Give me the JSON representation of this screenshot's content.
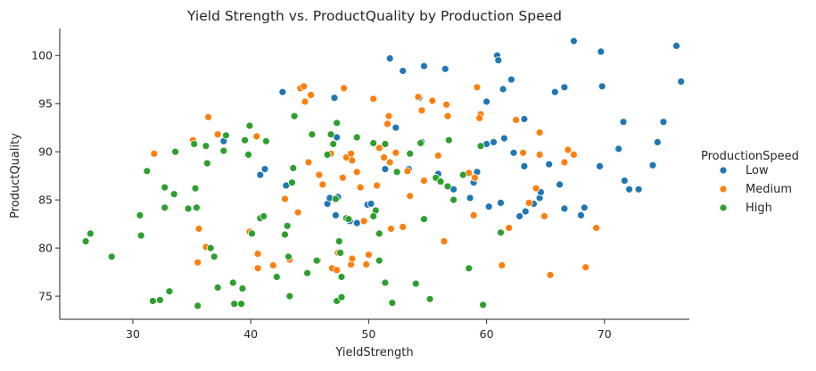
{
  "chart_data": {
    "type": "scatter",
    "title": "Yield Strength vs. ProductQuality by Production Speed",
    "xlabel": "YieldStrength",
    "ylabel": "ProductQuality",
    "xlim": [
      23.8,
      77.2
    ],
    "ylim": [
      72.6,
      102.8
    ],
    "xticks": [
      30,
      40,
      50,
      60,
      70
    ],
    "yticks": [
      75,
      80,
      85,
      90,
      95,
      100
    ],
    "grid": false,
    "legend": {
      "title": "ProductionSpeed",
      "position": "right"
    },
    "series": [
      {
        "name": "Low",
        "color": "#1f77b4",
        "points": [
          [
            37.7,
            91.1
          ],
          [
            40.8,
            87.6
          ],
          [
            41.2,
            88.2
          ],
          [
            42.7,
            96.2
          ],
          [
            43.0,
            86.5
          ],
          [
            44.3,
            96.6
          ],
          [
            46.5,
            84.6
          ],
          [
            46.7,
            85.2
          ],
          [
            47.1,
            95.6
          ],
          [
            47.3,
            91.5
          ],
          [
            47.2,
            83.4
          ],
          [
            47.4,
            85.3
          ],
          [
            48.4,
            82.8
          ],
          [
            49.0,
            82.6
          ],
          [
            49.9,
            84.5
          ],
          [
            50.2,
            84.6
          ],
          [
            51.4,
            88.2
          ],
          [
            51.8,
            99.7
          ],
          [
            52.3,
            92.5
          ],
          [
            52.9,
            98.4
          ],
          [
            53.4,
            88.2
          ],
          [
            54.3,
            95.6
          ],
          [
            54.5,
            91.0
          ],
          [
            54.7,
            98.9
          ],
          [
            55.9,
            87.7
          ],
          [
            56.5,
            98.6
          ],
          [
            57.2,
            86.1
          ],
          [
            58.6,
            85.2
          ],
          [
            58.9,
            86.8
          ],
          [
            59.2,
            87.9
          ],
          [
            60.0,
            90.8
          ],
          [
            60.0,
            95.2
          ],
          [
            60.2,
            84.3
          ],
          [
            60.6,
            91.0
          ],
          [
            60.9,
            100.0
          ],
          [
            61.0,
            99.5
          ],
          [
            61.2,
            84.7
          ],
          [
            61.4,
            96.5
          ],
          [
            61.5,
            91.4
          ],
          [
            62.1,
            97.5
          ],
          [
            62.3,
            89.9
          ],
          [
            62.8,
            83.3
          ],
          [
            63.2,
            93.4
          ],
          [
            63.2,
            88.5
          ],
          [
            63.3,
            83.8
          ],
          [
            64.0,
            84.6
          ],
          [
            64.5,
            85.2
          ],
          [
            64.6,
            85.8
          ],
          [
            65.3,
            88.7
          ],
          [
            65.8,
            96.2
          ],
          [
            66.2,
            86.6
          ],
          [
            66.6,
            96.7
          ],
          [
            66.6,
            84.1
          ],
          [
            67.4,
            101.5
          ],
          [
            68.0,
            83.4
          ],
          [
            68.3,
            84.2
          ],
          [
            69.6,
            88.5
          ],
          [
            69.7,
            100.4
          ],
          [
            69.8,
            96.8
          ],
          [
            71.2,
            90.3
          ],
          [
            71.6,
            93.1
          ],
          [
            71.7,
            87.0
          ],
          [
            72.1,
            86.1
          ],
          [
            72.9,
            86.1
          ],
          [
            74.1,
            88.6
          ],
          [
            74.5,
            91.0
          ],
          [
            75.0,
            93.1
          ],
          [
            76.1,
            101.0
          ],
          [
            76.5,
            97.3
          ]
        ]
      },
      {
        "name": "Medium",
        "color": "#ff7f0e",
        "points": [
          [
            31.8,
            89.8
          ],
          [
            35.1,
            91.2
          ],
          [
            35.5,
            78.5
          ],
          [
            35.6,
            82.0
          ],
          [
            36.2,
            80.1
          ],
          [
            36.4,
            93.6
          ],
          [
            37.2,
            91.8
          ],
          [
            39.9,
            81.7
          ],
          [
            40.5,
            91.6
          ],
          [
            40.6,
            79.4
          ],
          [
            40.6,
            77.9
          ],
          [
            41.9,
            78.2
          ],
          [
            42.9,
            85.1
          ],
          [
            43.3,
            78.8
          ],
          [
            44.0,
            83.7
          ],
          [
            44.2,
            96.6
          ],
          [
            44.5,
            96.8
          ],
          [
            44.6,
            95.2
          ],
          [
            44.9,
            88.9
          ],
          [
            45.1,
            95.9
          ],
          [
            45.7,
            78.7
          ],
          [
            45.8,
            87.6
          ],
          [
            46.1,
            86.6
          ],
          [
            46.8,
            89.8
          ],
          [
            46.9,
            77.9
          ],
          [
            47.3,
            77.7
          ],
          [
            47.4,
            79.5
          ],
          [
            47.8,
            87.3
          ],
          [
            47.9,
            96.6
          ],
          [
            48.1,
            89.4
          ],
          [
            48.5,
            89.8
          ],
          [
            48.6,
            89.1
          ],
          [
            48.5,
            78.3
          ],
          [
            48.6,
            78.9
          ],
          [
            49.0,
            87.9
          ],
          [
            49.3,
            86.3
          ],
          [
            49.6,
            82.8
          ],
          [
            49.8,
            78.3
          ],
          [
            50.0,
            79.3
          ],
          [
            50.4,
            95.5
          ],
          [
            50.7,
            86.5
          ],
          [
            50.9,
            90.4
          ],
          [
            51.3,
            89.4
          ],
          [
            51.6,
            92.9
          ],
          [
            51.7,
            93.7
          ],
          [
            51.8,
            88.9
          ],
          [
            51.9,
            82.0
          ],
          [
            52.3,
            89.9
          ],
          [
            52.9,
            82.2
          ],
          [
            53.3,
            88.0
          ],
          [
            53.5,
            85.4
          ],
          [
            54.2,
            95.7
          ],
          [
            54.5,
            94.3
          ],
          [
            54.7,
            87.0
          ],
          [
            55.4,
            95.3
          ],
          [
            55.9,
            89.6
          ],
          [
            56.4,
            80.7
          ],
          [
            56.6,
            94.9
          ],
          [
            56.7,
            93.7
          ],
          [
            58.5,
            87.8
          ],
          [
            58.9,
            83.4
          ],
          [
            59.0,
            87.3
          ],
          [
            59.2,
            96.7
          ],
          [
            59.5,
            93.9
          ],
          [
            59.4,
            93.5
          ],
          [
            61.3,
            78.2
          ],
          [
            61.9,
            82.1
          ],
          [
            62.5,
            93.3
          ],
          [
            63.1,
            89.9
          ],
          [
            63.6,
            84.7
          ],
          [
            64.2,
            86.2
          ],
          [
            64.5,
            89.7
          ],
          [
            64.5,
            92.0
          ],
          [
            64.9,
            83.3
          ],
          [
            65.4,
            77.2
          ],
          [
            66.6,
            88.9
          ],
          [
            66.9,
            90.2
          ],
          [
            67.4,
            89.7
          ],
          [
            68.4,
            78.0
          ],
          [
            69.3,
            82.1
          ]
        ]
      },
      {
        "name": "High",
        "color": "#2ca02c",
        "points": [
          [
            26.0,
            80.7
          ],
          [
            26.4,
            81.5
          ],
          [
            28.2,
            79.1
          ],
          [
            30.6,
            83.4
          ],
          [
            30.7,
            81.3
          ],
          [
            31.2,
            88.0
          ],
          [
            31.7,
            74.5
          ],
          [
            32.3,
            74.6
          ],
          [
            32.7,
            86.3
          ],
          [
            32.7,
            84.2
          ],
          [
            33.1,
            75.5
          ],
          [
            33.5,
            85.6
          ],
          [
            33.6,
            90.0
          ],
          [
            34.7,
            84.1
          ],
          [
            35.2,
            90.8
          ],
          [
            35.3,
            86.2
          ],
          [
            35.4,
            84.2
          ],
          [
            35.5,
            74.0
          ],
          [
            36.2,
            90.6
          ],
          [
            36.3,
            88.8
          ],
          [
            36.6,
            80.0
          ],
          [
            36.9,
            79.1
          ],
          [
            37.2,
            75.9
          ],
          [
            37.7,
            90.1
          ],
          [
            37.9,
            91.7
          ],
          [
            38.5,
            76.4
          ],
          [
            38.6,
            74.2
          ],
          [
            39.3,
            75.8
          ],
          [
            39.2,
            74.2
          ],
          [
            39.5,
            91.2
          ],
          [
            39.8,
            89.7
          ],
          [
            40.1,
            81.5
          ],
          [
            39.9,
            92.7
          ],
          [
            40.8,
            83.1
          ],
          [
            41.1,
            83.3
          ],
          [
            41.3,
            91.1
          ],
          [
            42.2,
            77.0
          ],
          [
            42.9,
            81.4
          ],
          [
            43.1,
            82.3
          ],
          [
            43.2,
            79.1
          ],
          [
            43.3,
            75.0
          ],
          [
            43.5,
            86.8
          ],
          [
            43.6,
            88.3
          ],
          [
            43.7,
            93.7
          ],
          [
            44.8,
            77.4
          ],
          [
            45.2,
            91.8
          ],
          [
            45.6,
            78.7
          ],
          [
            46.5,
            89.7
          ],
          [
            46.8,
            91.8
          ],
          [
            47.0,
            90.8
          ],
          [
            47.2,
            85.1
          ],
          [
            47.3,
            93.0
          ],
          [
            47.6,
            79.5
          ],
          [
            47.5,
            80.7
          ],
          [
            47.7,
            77.0
          ],
          [
            47.3,
            74.5
          ],
          [
            47.7,
            74.9
          ],
          [
            48.1,
            83.1
          ],
          [
            48.3,
            83.0
          ],
          [
            49.0,
            91.5
          ],
          [
            50.4,
            90.9
          ],
          [
            50.6,
            83.9
          ],
          [
            50.9,
            81.5
          ],
          [
            50.4,
            83.3
          ],
          [
            50.9,
            78.7
          ],
          [
            51.4,
            76.4
          ],
          [
            51.4,
            90.8
          ],
          [
            52.0,
            74.3
          ],
          [
            52.4,
            87.9
          ],
          [
            53.5,
            89.8
          ],
          [
            54.0,
            76.3
          ],
          [
            54.4,
            90.9
          ],
          [
            54.7,
            83.0
          ],
          [
            55.2,
            74.7
          ],
          [
            55.7,
            87.3
          ],
          [
            56.1,
            86.9
          ],
          [
            56.7,
            86.4
          ],
          [
            56.8,
            91.2
          ],
          [
            57.2,
            85.0
          ],
          [
            58.0,
            87.6
          ],
          [
            58.5,
            77.9
          ],
          [
            59.5,
            90.6
          ],
          [
            59.7,
            74.1
          ],
          [
            61.2,
            81.6
          ]
        ]
      }
    ]
  }
}
